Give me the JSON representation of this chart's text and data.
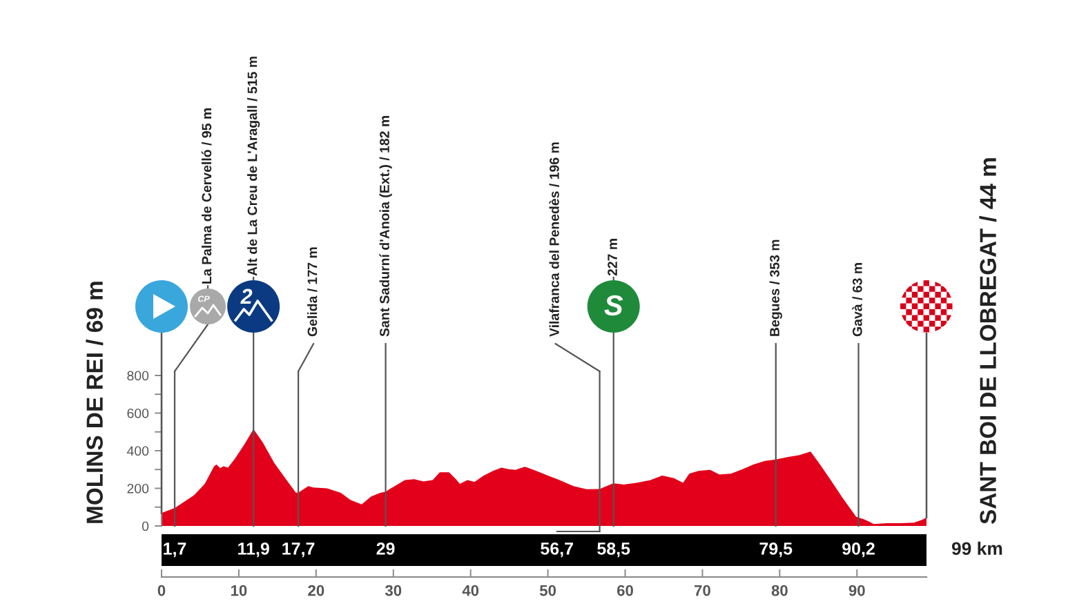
{
  "chart_data": {
    "type": "area",
    "color": "#e2001a",
    "x": [
      0,
      1.7,
      4.2,
      5.6,
      6.8,
      7.1,
      7.6,
      8.0,
      8.6,
      9.5,
      10.7,
      11.9,
      13.1,
      14.6,
      16.1,
      17.4,
      17.7,
      19.0,
      19.6,
      21.4,
      23.2,
      24.4,
      25.9,
      27.1,
      28.3,
      29.0,
      29.5,
      31.5,
      32.7,
      33.9,
      35.1,
      36.0,
      37.2,
      38.1,
      38.6,
      39.6,
      40.5,
      41.7,
      42.9,
      44.0,
      44.9,
      45.8,
      47.0,
      48.5,
      50.0,
      51.5,
      53.3,
      55.0,
      56.7,
      58.3,
      58.5,
      59.8,
      61.5,
      63.3,
      64.8,
      66.3,
      67.5,
      68.3,
      69.5,
      71.0,
      72.2,
      73.7,
      75.2,
      76.6,
      78.1,
      79.5,
      81.0,
      82.5,
      84.0,
      85.1,
      86.6,
      88.1,
      89.9,
      91.0,
      92.2,
      93.9,
      95.7,
      97.4,
      98.5,
      99
    ],
    "values": [
      69,
      95,
      163,
      224,
      317,
      327,
      307,
      317,
      310,
      358,
      432,
      515,
      444,
      334,
      249,
      176,
      177,
      212,
      205,
      200,
      176,
      139,
      115,
      156,
      176,
      182,
      195,
      244,
      249,
      237,
      244,
      285,
      285,
      249,
      224,
      244,
      234,
      268,
      293,
      310,
      302,
      298,
      315,
      293,
      268,
      244,
      212,
      195,
      196,
      224,
      227,
      220,
      229,
      244,
      268,
      254,
      229,
      278,
      293,
      298,
      273,
      278,
      302,
      327,
      346,
      353,
      366,
      376,
      395,
      334,
      244,
      151,
      49,
      34,
      10,
      15,
      15,
      17,
      34,
      44
    ],
    "xlim": [
      0,
      99
    ],
    "xticks": [
      0,
      10,
      20,
      30,
      40,
      50,
      60,
      70,
      80,
      90
    ],
    "ylim": [
      0,
      800
    ],
    "yticks": [
      0,
      {
        "value": 100,
        "label": null
      },
      200,
      {
        "value": 300,
        "label": null
      },
      400,
      {
        "value": 500,
        "label": null
      },
      600,
      {
        "value": 700,
        "label": null
      },
      800
    ],
    "x2lim": [
      0,
      99
    ],
    "x2ticks": [
      {
        "value": 1.7,
        "label": "1,7"
      },
      {
        "value": 11.9,
        "label": "11,9"
      },
      {
        "value": 17.7,
        "label": "17,7"
      },
      {
        "value": 29,
        "label": "29"
      },
      {
        "value": 58.5,
        "label": "58,5"
      },
      {
        "value": 79.5,
        "label": "79,5"
      },
      {
        "value": 90.2,
        "label": "90,2"
      }
    ],
    "x2label": "99 km",
    "ref_lines": [
      {
        "axis": "x",
        "value": 1.7,
        "label": "La Palma de Cervelló / 95 m",
        "color": "#555555"
      },
      {
        "axis": "x",
        "value": 11.9,
        "label": "Alt de La Creu de L'Aragall / 515 m",
        "color": "#555555"
      },
      {
        "axis": "x",
        "value": 17.7,
        "label": "Gelida / 177 m",
        "color": "#555555"
      },
      {
        "axis": "x",
        "value": 29,
        "label": "Sant Sadurní d'Anoia (Ext.) / 182 m",
        "color": "#555555"
      },
      {
        "axis": "x",
        "value": 56.7,
        "label": "Vilafranca del Penedès / 196 m",
        "color": "#555555"
      },
      {
        "axis": "x",
        "value": 58.5,
        "label": "227 m",
        "color": "#555555"
      },
      {
        "axis": "x",
        "value": 79.5,
        "label": "Begues / 353 m",
        "color": "#555555"
      },
      {
        "axis": "x",
        "value": 90.2,
        "label": "Gavà / 63 m",
        "color": "#555555"
      }
    ],
    "annotations": [
      "CP",
      "2",
      "S",
      {
        "text": "MOLINS DE REI / 69 m",
        "x": 0,
        "y": 69
      },
      {
        "text": "SANT BOI DE LLOBREGAT / 44 m",
        "x": 99,
        "y": 44
      },
      {
        "text": "56,7",
        "x": 56.7,
        "y": 0
      }
    ]
  }
}
